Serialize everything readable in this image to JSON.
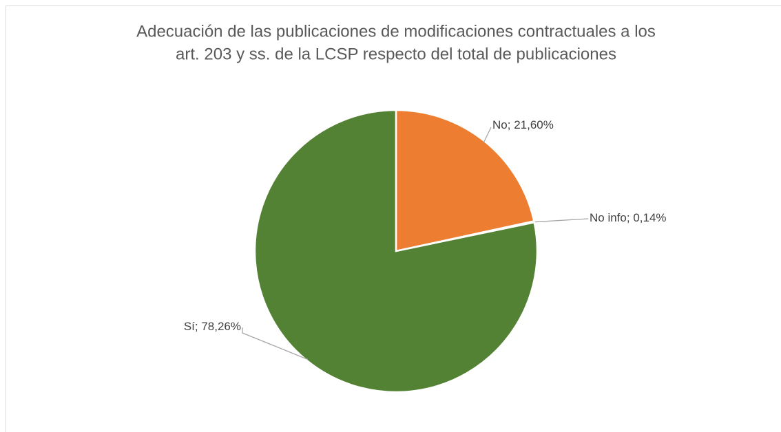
{
  "chart_data": {
    "type": "pie",
    "title": [
      "Adecuación de las publicaciones de modificaciones contractuales a los",
      "art. 203 y ss. de la LCSP respecto del total de publicaciones"
    ],
    "categories": [
      "No",
      "No info",
      "Sí"
    ],
    "values": [
      21.6,
      0.14,
      78.26
    ],
    "label_separator": "; ",
    "value_labels": [
      "21,60%",
      "0,14%",
      "78,26%"
    ],
    "colors": [
      "#ed7d31",
      "#a5a5a5",
      "#548235"
    ]
  }
}
